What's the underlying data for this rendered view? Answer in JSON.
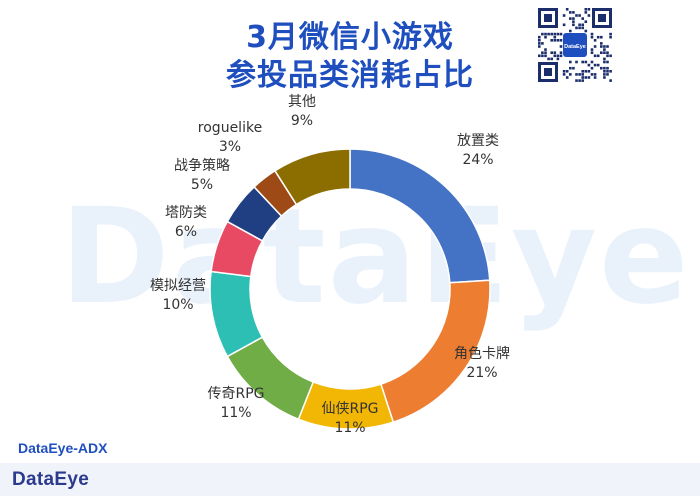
{
  "title_line1": "3月微信小游戏",
  "title_line2": "参投品类消耗占比",
  "source_label": "DataEye-ADX",
  "brand": "DataEye",
  "watermark_text": "DataEye",
  "qr_center_label": "DataEye",
  "chart_data": {
    "type": "pie",
    "variant": "donut",
    "title": "3月微信小游戏 参投品类消耗占比",
    "unit": "%",
    "slices": [
      {
        "label": "放置类",
        "value": 24,
        "display": "24%",
        "color": "#4472c4"
      },
      {
        "label": "角色卡牌",
        "value": 21,
        "display": "21%",
        "color": "#ed7d31"
      },
      {
        "label": "仙侠RPG",
        "value": 11,
        "display": "11%",
        "color": "#f2b705"
      },
      {
        "label": "传奇RPG",
        "value": 11,
        "display": "11%",
        "color": "#70ad47"
      },
      {
        "label": "模拟经营",
        "value": 10,
        "display": "10%",
        "color": "#2ebfb4"
      },
      {
        "label": "塔防类",
        "value": 6,
        "display": "6%",
        "color": "#e84a64"
      },
      {
        "label": "战争策略",
        "value": 5,
        "display": "5%",
        "color": "#1f3f82"
      },
      {
        "label": "roguelike",
        "value": 3,
        "display": "3%",
        "color": "#9e4a16"
      },
      {
        "label": "其他",
        "value": 9,
        "display": "9%",
        "color": "#8c6d00"
      }
    ],
    "start_at": "top",
    "direction": "clockwise"
  }
}
